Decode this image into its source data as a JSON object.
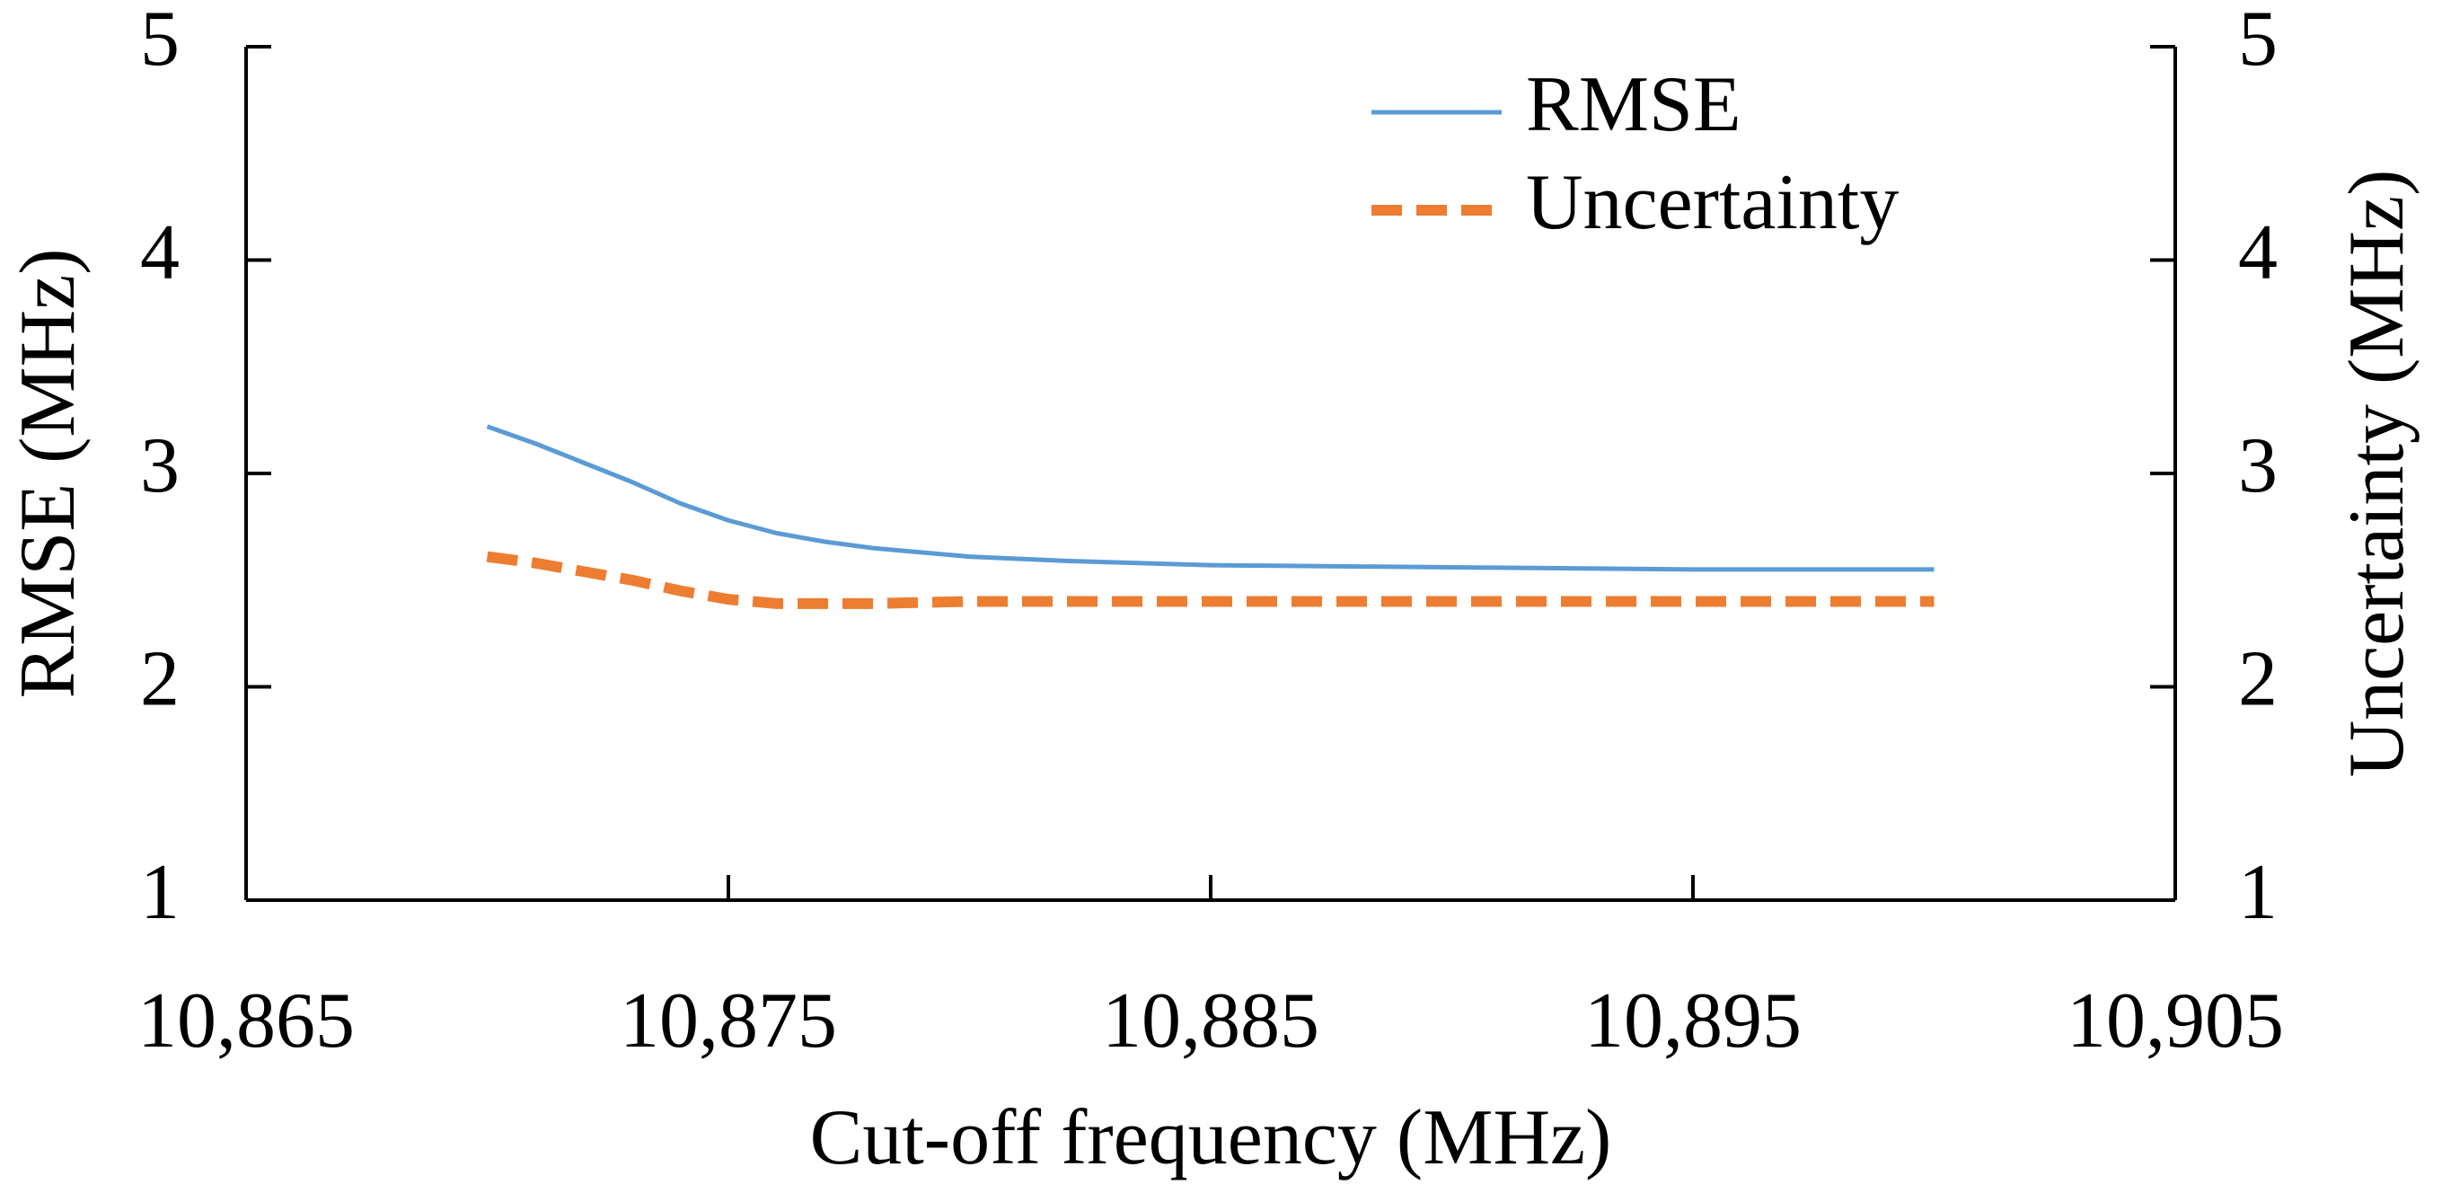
{
  "chart_data": {
    "type": "line",
    "x_label": "Cut-off frequency (MHz)",
    "y_label": "RMSE (MHz)",
    "y2_label": "Uncertainty (MHz)",
    "x": [
      10870,
      10871,
      10872,
      10873,
      10874,
      10875,
      10876,
      10877,
      10878,
      10880,
      10882,
      10885,
      10890,
      10895,
      10900
    ],
    "series": [
      {
        "name": "RMSE",
        "color": "#5b9bd5",
        "line_style": "solid",
        "values": [
          3.22,
          3.14,
          3.05,
          2.96,
          2.86,
          2.78,
          2.72,
          2.68,
          2.65,
          2.61,
          2.59,
          2.57,
          2.56,
          2.55,
          2.55
        ]
      },
      {
        "name": "Uncertainty",
        "color": "#ed7d31",
        "line_style": "dashed",
        "axis": "y2",
        "values": [
          2.61,
          2.58,
          2.54,
          2.5,
          2.45,
          2.41,
          2.39,
          2.39,
          2.39,
          2.4,
          2.4,
          2.4,
          2.4,
          2.4,
          2.4
        ]
      }
    ],
    "xlim": [
      10865,
      10905
    ],
    "xticks": [
      {
        "value": 10865,
        "label": "10,865"
      },
      {
        "value": 10875,
        "label": "10,875"
      },
      {
        "value": 10885,
        "label": "10,885"
      },
      {
        "value": 10895,
        "label": "10,895"
      },
      {
        "value": 10905,
        "label": "10,905"
      }
    ],
    "ylim": [
      1,
      5
    ],
    "yticks": [
      1,
      2,
      3,
      4,
      5
    ],
    "y2lim": [
      1,
      5
    ],
    "y2ticks": [
      1,
      2,
      3,
      4,
      5
    ],
    "grid": false,
    "legend": "upper center"
  }
}
